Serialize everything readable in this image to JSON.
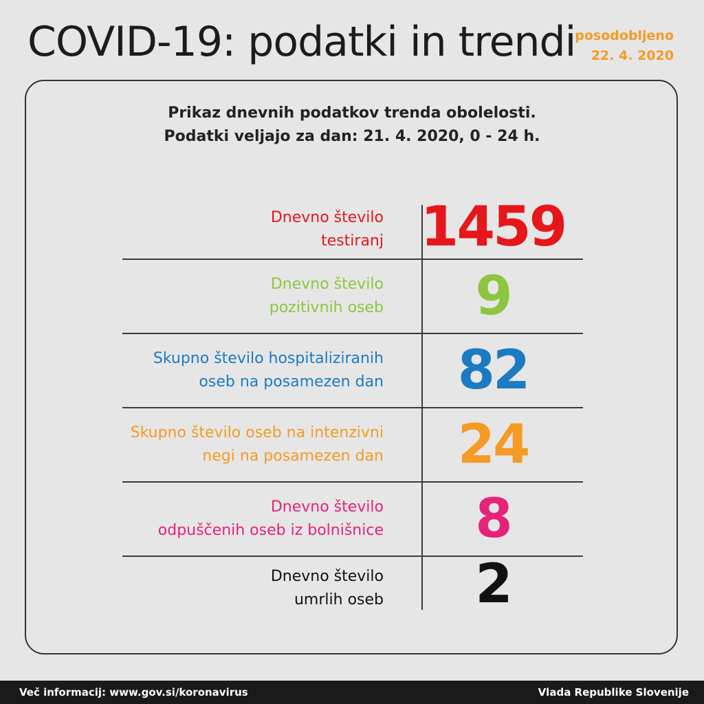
{
  "header": {
    "title": "COVID-19: podatki in trendi",
    "updated_label": "posodobljeno",
    "updated_date": "22. 4. 2020"
  },
  "subtitle": {
    "line1": "Prikaz dnevnih podatkov trenda obolelosti.",
    "line2": "Podatki veljajo za dan: 21. 4. 2020, 0 - 24 h."
  },
  "stats": [
    {
      "label_line1": "Dnevno število",
      "label_line2": "testiranj",
      "value": "1459",
      "color": "#e6161b"
    },
    {
      "label_line1": "Dnevno število",
      "label_line2": "pozitivnih oseb",
      "value": "9",
      "color": "#8cc63f"
    },
    {
      "label_line1": "Skupno število hospitaliziranih",
      "label_line2": "oseb na posamezen dan",
      "value": "82",
      "color": "#1b7bc2"
    },
    {
      "label_line1": "Skupno število oseb na intenzivni",
      "label_line2": "negi na posamezen dan",
      "value": "24",
      "color": "#f59a23"
    },
    {
      "label_line1": "Dnevno število",
      "label_line2": "odpuščenih oseb iz bolnišnice",
      "value": "8",
      "color": "#e5237a"
    },
    {
      "label_line1": "Dnevno število",
      "label_line2": "umrlih oseb",
      "value": "2",
      "color": "#111111"
    }
  ],
  "footer": {
    "left": "Več informacij: www.gov.si/koronavirus",
    "right": "Vlada Republike Slovenije"
  }
}
